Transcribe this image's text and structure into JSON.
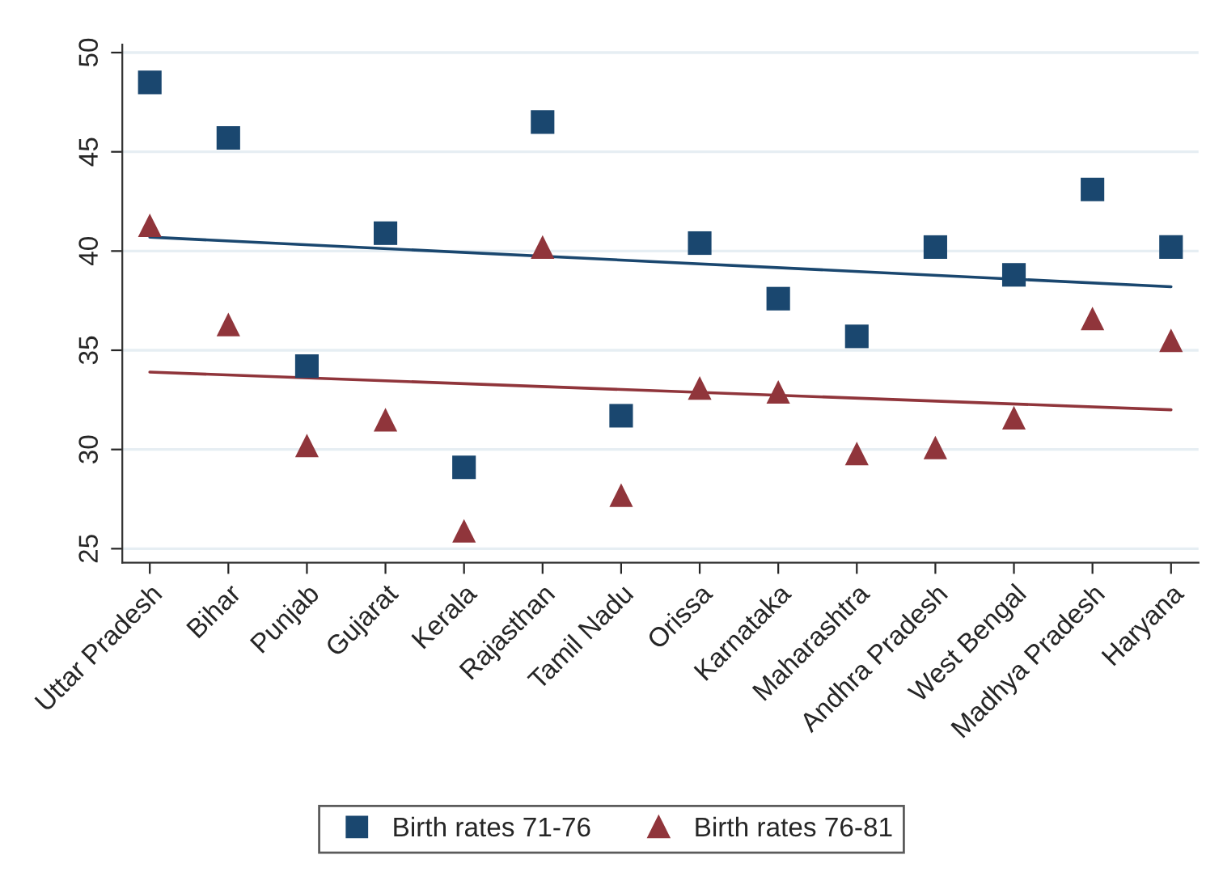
{
  "chart_data": {
    "type": "scatter",
    "categories": [
      "Uttar Pradesh",
      "Bihar",
      "Punjab",
      "Gujarat",
      "Kerala",
      "Rajasthan",
      "Tamil Nadu",
      "Orissa",
      "Karnataka",
      "Maharashtra",
      "Andhra Pradesh",
      "West Bengal",
      "Madhya Pradesh",
      "Haryana"
    ],
    "series": [
      {
        "name": "Birth rates 71-76",
        "color": "#1a476f",
        "marker": "square",
        "values": [
          48.5,
          45.7,
          34.2,
          40.9,
          29.1,
          46.5,
          31.7,
          40.4,
          37.6,
          35.7,
          40.2,
          38.8,
          43.1,
          40.2
        ]
      },
      {
        "name": "Birth rates 76-81",
        "color": "#90353b",
        "marker": "triangle",
        "values": [
          41.3,
          36.3,
          30.2,
          31.5,
          25.9,
          40.2,
          27.7,
          33.1,
          32.9,
          29.8,
          30.1,
          31.6,
          36.6,
          35.5
        ]
      },
      {
        "type": "line",
        "color": "#1a476f",
        "marker": "none",
        "x": [
          "Uttar Pradesh",
          "Haryana"
        ],
        "values": [
          40.7,
          38.2
        ]
      },
      {
        "type": "line",
        "color": "#90353b",
        "marker": "none",
        "x": [
          "Uttar Pradesh",
          "Haryana"
        ],
        "values": [
          33.9,
          32.0
        ]
      }
    ],
    "ylim": [
      24.3,
      50.4
    ],
    "yticks": [
      25,
      30,
      35,
      40,
      45,
      50
    ],
    "grid": "y",
    "legend": "bottom"
  }
}
